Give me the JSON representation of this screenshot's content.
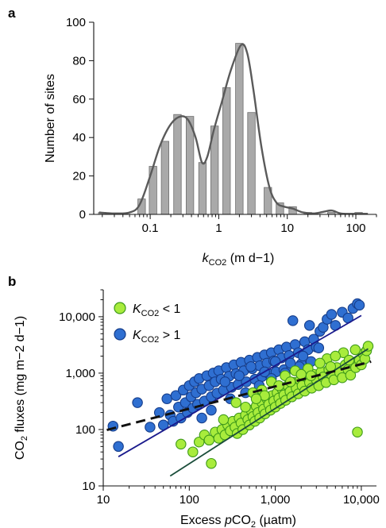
{
  "chart_data": [
    {
      "panel_label": "a",
      "type": "bar",
      "xscale": "log",
      "xlim": [
        0.015,
        200
      ],
      "ylim": [
        0,
        100
      ],
      "xlabel_main": "k",
      "xlabel_sub": "CO2",
      "xlabel_rest": " (m d−1)",
      "ylabel": "Number of sites",
      "xticks": [
        {
          "value": 0.1,
          "label": "0.1"
        },
        {
          "value": 1,
          "label": "1"
        },
        {
          "value": 10,
          "label": "10"
        },
        {
          "value": 100,
          "label": "100"
        }
      ],
      "yticks": [
        {
          "value": 0,
          "label": "0"
        },
        {
          "value": 20,
          "label": "20"
        },
        {
          "value": 40,
          "label": "40"
        },
        {
          "value": 60,
          "label": "60"
        },
        {
          "value": 80,
          "label": "80"
        },
        {
          "value": 100,
          "label": "100"
        }
      ],
      "bars": [
        {
          "x": 0.02,
          "value": 1
        },
        {
          "x": 0.075,
          "value": 8
        },
        {
          "x": 0.11,
          "value": 25
        },
        {
          "x": 0.165,
          "value": 38
        },
        {
          "x": 0.25,
          "value": 52
        },
        {
          "x": 0.38,
          "value": 51
        },
        {
          "x": 0.58,
          "value": 27
        },
        {
          "x": 0.87,
          "value": 46
        },
        {
          "x": 1.3,
          "value": 66
        },
        {
          "x": 2.0,
          "value": 89
        },
        {
          "x": 3.0,
          "value": 53
        },
        {
          "x": 5.2,
          "value": 14
        },
        {
          "x": 7.8,
          "value": 6
        },
        {
          "x": 12,
          "value": 4
        },
        {
          "x": 20,
          "value": 1
        },
        {
          "x": 44,
          "value": 1
        },
        {
          "x": 110,
          "value": 1
        }
      ],
      "density_curve": [
        {
          "x": 0.018,
          "y": 1
        },
        {
          "x": 0.03,
          "y": 0.5
        },
        {
          "x": 0.05,
          "y": 1
        },
        {
          "x": 0.07,
          "y": 5
        },
        {
          "x": 0.1,
          "y": 20
        },
        {
          "x": 0.14,
          "y": 36
        },
        {
          "x": 0.2,
          "y": 47
        },
        {
          "x": 0.28,
          "y": 51
        },
        {
          "x": 0.36,
          "y": 49
        },
        {
          "x": 0.46,
          "y": 40
        },
        {
          "x": 0.57,
          "y": 27
        },
        {
          "x": 0.68,
          "y": 30
        },
        {
          "x": 0.85,
          "y": 44
        },
        {
          "x": 1.1,
          "y": 58
        },
        {
          "x": 1.5,
          "y": 75
        },
        {
          "x": 2.1,
          "y": 88
        },
        {
          "x": 2.6,
          "y": 84
        },
        {
          "x": 3.2,
          "y": 65
        },
        {
          "x": 4.2,
          "y": 35
        },
        {
          "x": 5.5,
          "y": 14
        },
        {
          "x": 7,
          "y": 6
        },
        {
          "x": 9,
          "y": 4
        },
        {
          "x": 12,
          "y": 3
        },
        {
          "x": 17,
          "y": 1
        },
        {
          "x": 25,
          "y": 0.5
        },
        {
          "x": 35,
          "y": 1.5
        },
        {
          "x": 45,
          "y": 2
        },
        {
          "x": 60,
          "y": 0.5
        },
        {
          "x": 90,
          "y": 0.3
        },
        {
          "x": 150,
          "y": 0.3
        }
      ],
      "colors": {
        "bar": "#a9a9a9",
        "bar_edge": "#6e6e6e",
        "curve": "#5a5a5a"
      }
    },
    {
      "panel_label": "b",
      "type": "scatter",
      "xscale": "log",
      "yscale": "log",
      "xlim": [
        10,
        15000
      ],
      "ylim": [
        10,
        30000
      ],
      "xlabel_main": "Excess ",
      "xlabel_italic": "p",
      "xlabel_rest": "CO",
      "xlabel_sub": "2",
      "xlabel_unit": " (µatm)",
      "ylabel_main": "CO",
      "ylabel_sub": "2",
      "ylabel_rest": " fluxes (mg m−2 d−1)",
      "xticks": [
        {
          "value": 10,
          "label": "10"
        },
        {
          "value": 100,
          "label": "100"
        },
        {
          "value": 1000,
          "label": "1,000"
        },
        {
          "value": 10000,
          "label": "10,000"
        }
      ],
      "yticks": [
        {
          "value": 10,
          "label": "10"
        },
        {
          "value": 100,
          "label": "100"
        },
        {
          "value": 1000,
          "label": "1,000"
        },
        {
          "value": 10000,
          "label": "10,000"
        }
      ],
      "legend": [
        {
          "symbol_main": "K",
          "symbol_sub": "CO2",
          "condition": " < 1",
          "color": "#a8ec3c",
          "edge": "#3f9a1a"
        },
        {
          "symbol_main": "K",
          "symbol_sub": "CO2",
          "condition": " > 1",
          "color": "#2f6fd1",
          "edge": "#163d8a"
        }
      ],
      "series": [
        {
          "color": "#a8ec3c",
          "edge": "#3f9a1a",
          "points": [
            [
              80,
              55
            ],
            [
              110,
              40
            ],
            [
              130,
              60
            ],
            [
              150,
              80
            ],
            [
              170,
              65
            ],
            [
              180,
              25
            ],
            [
              200,
              90
            ],
            [
              220,
              70
            ],
            [
              240,
              100
            ],
            [
              260,
              80
            ],
            [
              280,
              120
            ],
            [
              300,
              95
            ],
            [
              320,
              140
            ],
            [
              340,
              110
            ],
            [
              360,
              85
            ],
            [
              380,
              160
            ],
            [
              400,
              130
            ],
            [
              420,
              100
            ],
            [
              450,
              180
            ],
            [
              480,
              150
            ],
            [
              500,
              120
            ],
            [
              520,
              220
            ],
            [
              550,
              170
            ],
            [
              580,
              140
            ],
            [
              600,
              260
            ],
            [
              630,
              200
            ],
            [
              660,
              160
            ],
            [
              700,
              300
            ],
            [
              730,
              230
            ],
            [
              760,
              190
            ],
            [
              800,
              350
            ],
            [
              840,
              280
            ],
            [
              880,
              220
            ],
            [
              920,
              400
            ],
            [
              960,
              320
            ],
            [
              1000,
              250
            ],
            [
              1050,
              450
            ],
            [
              1100,
              360
            ],
            [
              1150,
              290
            ],
            [
              1200,
              520
            ],
            [
              1260,
              410
            ],
            [
              1320,
              330
            ],
            [
              1400,
              600
            ],
            [
              1480,
              470
            ],
            [
              1560,
              380
            ],
            [
              1650,
              680
            ],
            [
              1750,
              540
            ],
            [
              1850,
              430
            ],
            [
              1950,
              750
            ],
            [
              2050,
              600
            ],
            [
              2200,
              480
            ],
            [
              2350,
              850
            ],
            [
              2500,
              680
            ],
            [
              2650,
              540
            ],
            [
              2800,
              950
            ],
            [
              3000,
              760
            ],
            [
              3200,
              600
            ],
            [
              3400,
              1050
            ],
            [
              3600,
              850
            ],
            [
              3900,
              680
            ],
            [
              4200,
              1150
            ],
            [
              4500,
              940
            ],
            [
              4800,
              760
            ],
            [
              5200,
              1250
            ],
            [
              5600,
              1020
            ],
            [
              6000,
              830
            ],
            [
              6500,
              1400
            ],
            [
              7000,
              1150
            ],
            [
              7500,
              920
            ],
            [
              8000,
              1550
            ],
            [
              8600,
              1250
            ],
            [
              9000,
              90
            ],
            [
              9500,
              1700
            ],
            [
              10000,
              1400
            ],
            [
              10500,
              2200
            ],
            [
              11000,
              1800
            ],
            [
              11500,
              2500
            ],
            [
              12000,
              3000
            ],
            [
              700,
              500
            ],
            [
              1300,
              900
            ],
            [
              2400,
              1200
            ],
            [
              4000,
              1800
            ],
            [
              6200,
              2300
            ],
            [
              350,
              300
            ],
            [
              550,
              450
            ],
            [
              900,
              700
            ],
            [
              1700,
              1100
            ],
            [
              3300,
              1500
            ],
            [
              5000,
              2000
            ],
            [
              8500,
              2600
            ],
            [
              250,
              150
            ],
            [
              450,
              250
            ],
            [
              750,
              400
            ],
            [
              1500,
              700
            ],
            [
              2600,
              900
            ],
            [
              4400,
              1300
            ],
            [
              7200,
              1700
            ],
            [
              600,
              350
            ],
            [
              1100,
              600
            ],
            [
              2000,
              950
            ]
          ]
        },
        {
          "color": "#2f6fd1",
          "edge": "#163d8a",
          "points": [
            [
              13,
              115
            ],
            [
              15,
              50
            ],
            [
              25,
              300
            ],
            [
              35,
              110
            ],
            [
              45,
              200
            ],
            [
              50,
              120
            ],
            [
              55,
              350
            ],
            [
              60,
              180
            ],
            [
              65,
              140
            ],
            [
              70,
              400
            ],
            [
              75,
              250
            ],
            [
              80,
              160
            ],
            [
              85,
              500
            ],
            [
              90,
              300
            ],
            [
              95,
              200
            ],
            [
              100,
              600
            ],
            [
              105,
              380
            ],
            [
              110,
              240
            ],
            [
              115,
              700
            ],
            [
              120,
              450
            ],
            [
              125,
              280
            ],
            [
              130,
              800
            ],
            [
              140,
              520
            ],
            [
              150,
              320
            ],
            [
              160,
              900
            ],
            [
              170,
              600
            ],
            [
              180,
              380
            ],
            [
              190,
              1000
            ],
            [
              200,
              700
            ],
            [
              210,
              440
            ],
            [
              220,
              1100
            ],
            [
              235,
              780
            ],
            [
              250,
              500
            ],
            [
              270,
              1250
            ],
            [
              290,
              880
            ],
            [
              310,
              560
            ],
            [
              330,
              1400
            ],
            [
              350,
              980
            ],
            [
              370,
              630
            ],
            [
              400,
              1550
            ],
            [
              430,
              1100
            ],
            [
              460,
              700
            ],
            [
              500,
              1700
            ],
            [
              540,
              1200
            ],
            [
              580,
              780
            ],
            [
              620,
              1900
            ],
            [
              660,
              1350
            ],
            [
              700,
              870
            ],
            [
              750,
              2100
            ],
            [
              800,
              1500
            ],
            [
              850,
              960
            ],
            [
              900,
              2300
            ],
            [
              960,
              1650
            ],
            [
              1020,
              1050
            ],
            [
              1100,
              2600
            ],
            [
              1180,
              1850
            ],
            [
              1260,
              1150
            ],
            [
              1350,
              2900
            ],
            [
              1450,
              2050
            ],
            [
              1550,
              1280
            ],
            [
              1700,
              3200
            ],
            [
              1850,
              2300
            ],
            [
              2000,
              1450
            ],
            [
              2200,
              3600
            ],
            [
              2400,
              2600
            ],
            [
              2600,
              1600
            ],
            [
              2800,
              4000
            ],
            [
              3000,
              2900
            ],
            [
              3300,
              5500
            ],
            [
              3600,
              6500
            ],
            [
              4000,
              9000
            ],
            [
              4500,
              11000
            ],
            [
              5000,
              7000
            ],
            [
              6000,
              12000
            ],
            [
              7000,
              9500
            ],
            [
              8000,
              14000
            ],
            [
              9000,
              17000
            ],
            [
              9500,
              16000
            ],
            [
              1600,
              8500
            ],
            [
              2500,
              7000
            ],
            [
              180,
              220
            ],
            [
              140,
              160
            ],
            [
              300,
              350
            ],
            [
              450,
              450
            ],
            [
              650,
              600
            ],
            [
              900,
              800
            ],
            [
              1300,
              1000
            ],
            [
              1900,
              1300
            ],
            [
              260,
              700
            ],
            [
              380,
              900
            ],
            [
              520,
              1300
            ],
            [
              750,
              1050
            ],
            [
              1000,
              1600
            ],
            [
              1500,
              1500
            ],
            [
              2100,
              2000
            ],
            [
              3200,
              2800
            ]
          ]
        }
      ],
      "fit_lines": [
        {
          "series_color": "#1a1a8c",
          "x": [
            15,
            10000
          ],
          "y": [
            33,
            10500
          ],
          "style": "solid"
        },
        {
          "series_color": "#1a4d3a",
          "x": [
            60,
            12000
          ],
          "y": [
            15,
            2700
          ],
          "style": "solid"
        },
        {
          "series_color": "#111111",
          "x": [
            11,
            13000
          ],
          "y": [
            98,
            1600
          ],
          "style": "dashed"
        }
      ]
    }
  ]
}
